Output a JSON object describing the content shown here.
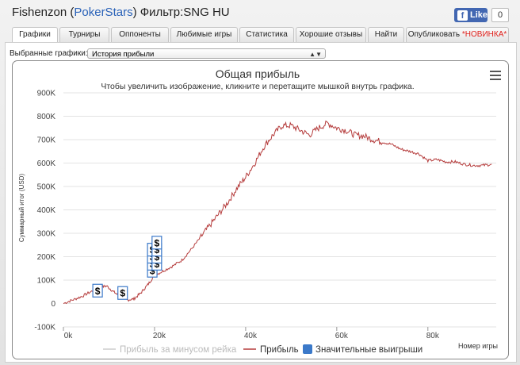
{
  "window": {
    "title_prefix": "Fishenzon (",
    "title_site": "PokerStars",
    "title_suffix": ") Фильтр:SNG HU",
    "fb_like": "Like",
    "fb_count": "0"
  },
  "tabs": [
    {
      "label": "Графики",
      "active": true
    },
    {
      "label": "Турниры"
    },
    {
      "label": "Оппоненты"
    },
    {
      "label": "Любимые игры"
    },
    {
      "label": "Статистика"
    },
    {
      "label": "Хорошие отзывы"
    },
    {
      "label": "Найти"
    },
    {
      "label": "Опубликовать",
      "badge": "*НОВИНКА*"
    }
  ],
  "selector": {
    "label": "Выбранные графики:",
    "value": "История прибыли"
  },
  "colors": {
    "profit_line": "#b53c3c",
    "rake_line": "#cccccc",
    "marker": "#3b79c9"
  },
  "chart_data": {
    "type": "line",
    "title": "Общая прибыль",
    "subtitle": "Чтобы увеличить изображение, кликните и перетащите мышкой внутрь графика.",
    "xlabel": "Номер игры",
    "ylabel": "Суммарный итог (USD)",
    "xlim": [
      0,
      95000
    ],
    "ylim": [
      -100000,
      900000
    ],
    "x_ticks": [
      "0k",
      "20k",
      "40k",
      "60k",
      "80k"
    ],
    "y_ticks": [
      "-100K",
      "0",
      "100K",
      "200K",
      "300K",
      "400K",
      "500K",
      "600K",
      "700K",
      "800K",
      "900K"
    ],
    "grid": true,
    "legend_position": "bottom",
    "series": [
      {
        "name": "Прибыль за минусом рейка",
        "values": []
      },
      {
        "name": "Прибыль",
        "x": [
          0,
          2000,
          4000,
          6000,
          8000,
          9500,
          11000,
          12500,
          14000,
          15500,
          17000,
          18500,
          20000,
          22000,
          24000,
          26000,
          28000,
          30000,
          32000,
          34000,
          36000,
          38000,
          40000,
          42000,
          44000,
          46000,
          48000,
          50000,
          52000,
          54000,
          56000,
          58000,
          60000,
          62000,
          64000,
          66000,
          68000,
          70000,
          72000,
          74000,
          76000,
          78000,
          80000,
          82000,
          84000,
          86000,
          88000,
          90000,
          92000,
          94000
        ],
        "values": [
          0,
          15000,
          30000,
          50000,
          70000,
          75000,
          50000,
          30000,
          15000,
          20000,
          45000,
          80000,
          120000,
          140000,
          160000,
          185000,
          230000,
          280000,
          330000,
          380000,
          430000,
          490000,
          540000,
          600000,
          670000,
          720000,
          760000,
          760000,
          740000,
          720000,
          750000,
          770000,
          750000,
          740000,
          720000,
          715000,
          700000,
          690000,
          680000,
          660000,
          650000,
          640000,
          610000,
          615000,
          605000,
          605000,
          595000,
          590000,
          590000,
          595000
        ]
      },
      {
        "name": "Значительные выигрыши",
        "type": "marker",
        "x": [
          7500,
          13000,
          19500,
          19500,
          19500,
          19500,
          20500,
          20500,
          20500,
          20500
        ],
        "values": [
          55000,
          45000,
          140000,
          170000,
          200000,
          230000,
          170000,
          200000,
          230000,
          260000
        ],
        "symbol": "$"
      }
    ]
  }
}
